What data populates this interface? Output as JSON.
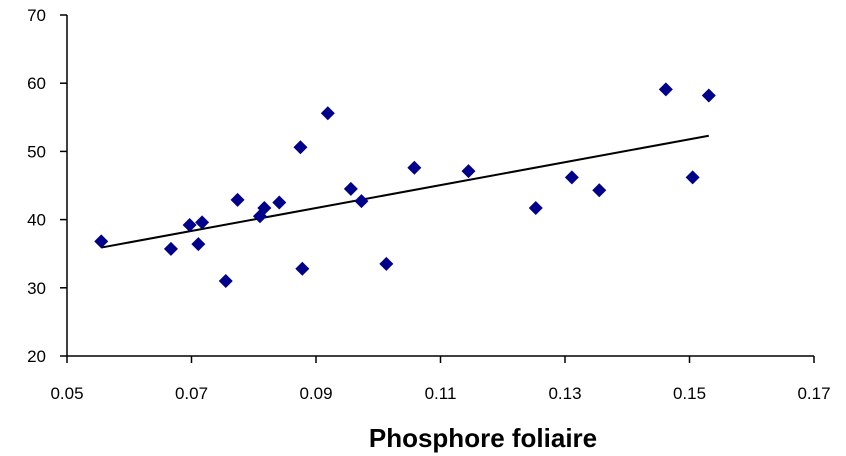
{
  "chart_data": {
    "type": "scatter",
    "title": "",
    "xlabel": "Phosphore foliaire",
    "ylabel": "",
    "xlim": [
      0.05,
      0.17
    ],
    "ylim": [
      20,
      70
    ],
    "x_ticks": [
      "0.05",
      "0.07",
      "0.09",
      "0.11",
      "0.13",
      "0.15",
      "0.17"
    ],
    "y_ticks": [
      "20",
      "30",
      "40",
      "50",
      "60",
      "70"
    ],
    "grid": false,
    "legend": "none",
    "marker_color": "#00008B",
    "trendline_color": "#000000",
    "series": [
      {
        "points": [
          {
            "x": 0.0555,
            "y": 36.8
          },
          {
            "x": 0.0667,
            "y": 35.7
          },
          {
            "x": 0.0697,
            "y": 39.2
          },
          {
            "x": 0.0711,
            "y": 36.4
          },
          {
            "x": 0.0717,
            "y": 39.6
          },
          {
            "x": 0.0755,
            "y": 31.0
          },
          {
            "x": 0.0774,
            "y": 42.9
          },
          {
            "x": 0.081,
            "y": 40.5
          },
          {
            "x": 0.0817,
            "y": 41.7
          },
          {
            "x": 0.0841,
            "y": 42.5
          },
          {
            "x": 0.0875,
            "y": 50.6
          },
          {
            "x": 0.0878,
            "y": 32.8
          },
          {
            "x": 0.0919,
            "y": 55.6
          },
          {
            "x": 0.0956,
            "y": 44.5
          },
          {
            "x": 0.0973,
            "y": 42.7
          },
          {
            "x": 0.1013,
            "y": 33.5
          },
          {
            "x": 0.1058,
            "y": 47.6
          },
          {
            "x": 0.1145,
            "y": 47.1
          },
          {
            "x": 0.1253,
            "y": 41.7
          },
          {
            "x": 0.1311,
            "y": 46.2
          },
          {
            "x": 0.1355,
            "y": 44.3
          },
          {
            "x": 0.1462,
            "y": 59.1
          },
          {
            "x": 0.1505,
            "y": 46.2
          },
          {
            "x": 0.1531,
            "y": 58.2
          }
        ]
      }
    ],
    "trendline": {
      "x": [
        0.0555,
        0.1531
      ],
      "y": [
        35.9,
        52.3
      ]
    }
  }
}
